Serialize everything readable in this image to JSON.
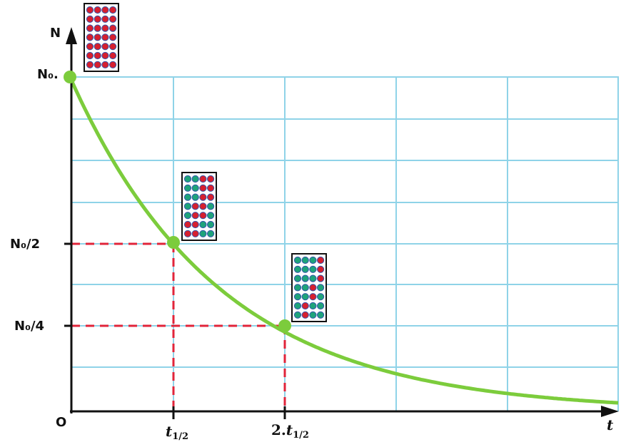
{
  "axes": {
    "y_label": "N",
    "x_label": "t",
    "origin": "O"
  },
  "y_ticks": [
    "N₀.",
    "N₀/2",
    "N₀/4"
  ],
  "x_ticks": [
    {
      "base": "t",
      "sub": "1/2"
    },
    {
      "prefix": "2.",
      "base": "t",
      "sub": "1/2"
    }
  ]
}
